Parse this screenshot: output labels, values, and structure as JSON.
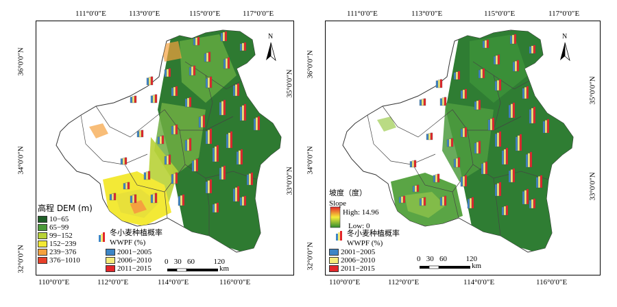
{
  "left_panel": {
    "top_ticks": [
      "111°0′0″E",
      "113°0′0″E",
      "115°0′0″E",
      "117°0′0″E"
    ],
    "bottom_ticks": [
      "110°0′0″E",
      "112°0′0″E",
      "114°0′0″E",
      "116°0′0″E"
    ],
    "left_ticks": [
      "36°0′0″N",
      "34°0′0″N",
      "32°0′0″N"
    ],
    "right_ticks": [
      "35°0′0″N",
      "33°0′0″N"
    ],
    "north_label": "N",
    "legend": {
      "title": "高程 DEM (m)",
      "classes": [
        {
          "label": "10−65",
          "color": "#1f5f28"
        },
        {
          "label": "65−99",
          "color": "#4b9a3a"
        },
        {
          "label": "99−152",
          "color": "#b8d237"
        },
        {
          "label": "152−239",
          "color": "#f3e936"
        },
        {
          "label": "239−376",
          "color": "#f5a13f"
        },
        {
          "label": "376−1010",
          "color": "#e8402a"
        }
      ],
      "bar_title_cn": "冬小麦种植概率",
      "bar_title_en": "WWPF (%)",
      "periods": [
        {
          "label": "2001−2005",
          "color": "#3d86c6"
        },
        {
          "label": "2006−2010",
          "color": "#f6ec7a"
        },
        {
          "label": "2011−2015",
          "color": "#e3262a"
        }
      ]
    },
    "scale_numbers": "0   30   60          120",
    "scale_unit": "km"
  },
  "right_panel": {
    "top_ticks": [
      "111°0′0″E",
      "113°0′0″E",
      "115°0′0″E",
      "117°0′0″E"
    ],
    "bottom_ticks": [
      "110°0′0″E",
      "112°0′0″E",
      "114°0′0″E",
      "116°0′0″E"
    ],
    "left_ticks": [
      "36°0′0″N",
      "34°0′0″N",
      "32°0′0″N"
    ],
    "right_ticks": [
      "35°0′0″N",
      "33°0′0″N"
    ],
    "north_label": "N",
    "legend": {
      "title_cn": "坡度（度）",
      "slope_label": "Slope",
      "high_label": "High: 14.96",
      "low_label": "Low: 0",
      "bar_title_cn": "冬小麦种植概率",
      "bar_title_en": "WWPF (%)",
      "periods": [
        {
          "label": "2001−2005",
          "color": "#3d86c6"
        },
        {
          "label": "2006−2010",
          "color": "#f6ec7a"
        },
        {
          "label": "2011−2015",
          "color": "#e3262a"
        }
      ]
    },
    "scale_numbers": "0   30   60          120",
    "scale_unit": "km"
  }
}
